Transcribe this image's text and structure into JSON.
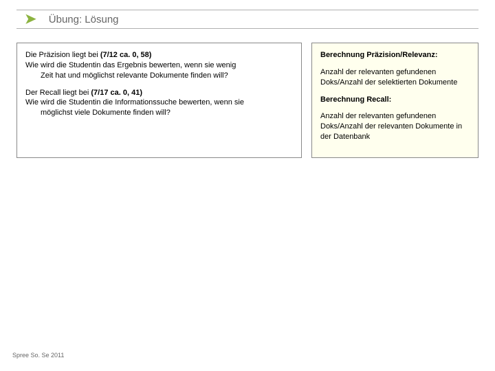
{
  "header": {
    "title": "Übung: Lösung",
    "chevron_color": "#8cb340",
    "title_color": "#666666",
    "border_color": "#b0b0b0"
  },
  "left_panel": {
    "border_color": "#888888",
    "background_color": "#ffffff",
    "font_size": 11,
    "p1_a": "Die Präzision liegt bei ",
    "p1_bold": "(7/12 ca. 0, 58)",
    "p1_b": "Wie wird die Studentin das Ergebnis bewerten, wenn sie wenig",
    "p1_c": "Zeit hat und möglichst relevante Dokumente finden will?",
    "p2_a": "Der Recall liegt bei ",
    "p2_bold": "(7/17 ca. 0, 41)",
    "p2_b": "Wie wird die Studentin die Informationssuche bewerten, wenn sie",
    "p2_c": "möglichst viele Dokumente finden will?"
  },
  "right_panel": {
    "border_color": "#888888",
    "background_color": "#ffffee",
    "font_size": 11,
    "h1": "Berechnung Präzision/Relevanz:",
    "t1": "Anzahl der relevanten gefundenen Doks/Anzahl der selektierten Dokumente",
    "h2": "Berechnung Recall:",
    "t2": "Anzahl der relevanten gefundenen Doks/Anzahl der relevanten Dokumente in der Datenbank"
  },
  "footer": {
    "text": "Spree So. Se 2011",
    "color": "#666666",
    "font_size": 9
  }
}
